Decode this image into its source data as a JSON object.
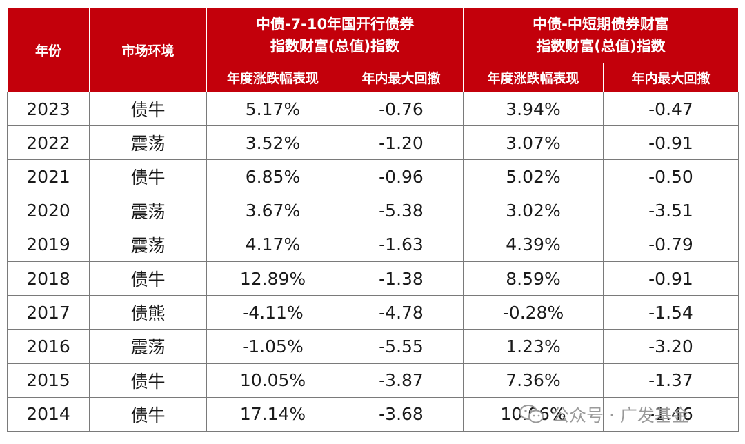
{
  "header": {
    "year": "年份",
    "market": "市场环境",
    "index1_line1": "中债-7-10年国开行债券",
    "index1_line2": "指数财富(总值)指数",
    "index2_line1": "中债-中短期债券财富",
    "index2_line2": "指数财富(总值)指数",
    "sub_return": "年度涨跌幅表现",
    "sub_drawdown": "年内最大回撤"
  },
  "rows": [
    {
      "year": "2023",
      "env": "债牛",
      "r1": "5.17%",
      "d1": "-0.76",
      "r2": "3.94%",
      "d2": "-0.47"
    },
    {
      "year": "2022",
      "env": "震荡",
      "r1": "3.52%",
      "d1": "-1.20",
      "r2": "3.07%",
      "d2": "-0.91"
    },
    {
      "year": "2021",
      "env": "债牛",
      "r1": "6.85%",
      "d1": "-0.96",
      "r2": "5.02%",
      "d2": "-0.50"
    },
    {
      "year": "2020",
      "env": "震荡",
      "r1": "3.67%",
      "d1": "-5.38",
      "r2": "3.02%",
      "d2": "-3.51"
    },
    {
      "year": "2019",
      "env": "震荡",
      "r1": "4.17%",
      "d1": "-1.63",
      "r2": "4.39%",
      "d2": "-0.79"
    },
    {
      "year": "2018",
      "env": "债牛",
      "r1": "12.89%",
      "d1": "-1.38",
      "r2": "8.59%",
      "d2": "-0.91"
    },
    {
      "year": "2017",
      "env": "债熊",
      "r1": "-4.11%",
      "d1": "-4.78",
      "r2": "-0.28%",
      "d2": "-1.54"
    },
    {
      "year": "2016",
      "env": "震荡",
      "r1": "-1.05%",
      "d1": "-5.55",
      "r2": "1.23%",
      "d2": "-3.20"
    },
    {
      "year": "2015",
      "env": "债牛",
      "r1": "10.05%",
      "d1": "-3.87",
      "r2": "7.36%",
      "d2": "-1.37"
    },
    {
      "year": "2014",
      "env": "债牛",
      "r1": "17.14%",
      "d1": "-3.68",
      "r2": "10.06%",
      "d2": "-1.46"
    }
  ],
  "watermark": {
    "text": "公众号 · 广发基金",
    "icon": "wechat-icon"
  },
  "colors": {
    "header_bg": "#c3000b",
    "header_text": "#ffffff",
    "border": "#7a7a7a",
    "watermark": "#9a9a9a"
  }
}
